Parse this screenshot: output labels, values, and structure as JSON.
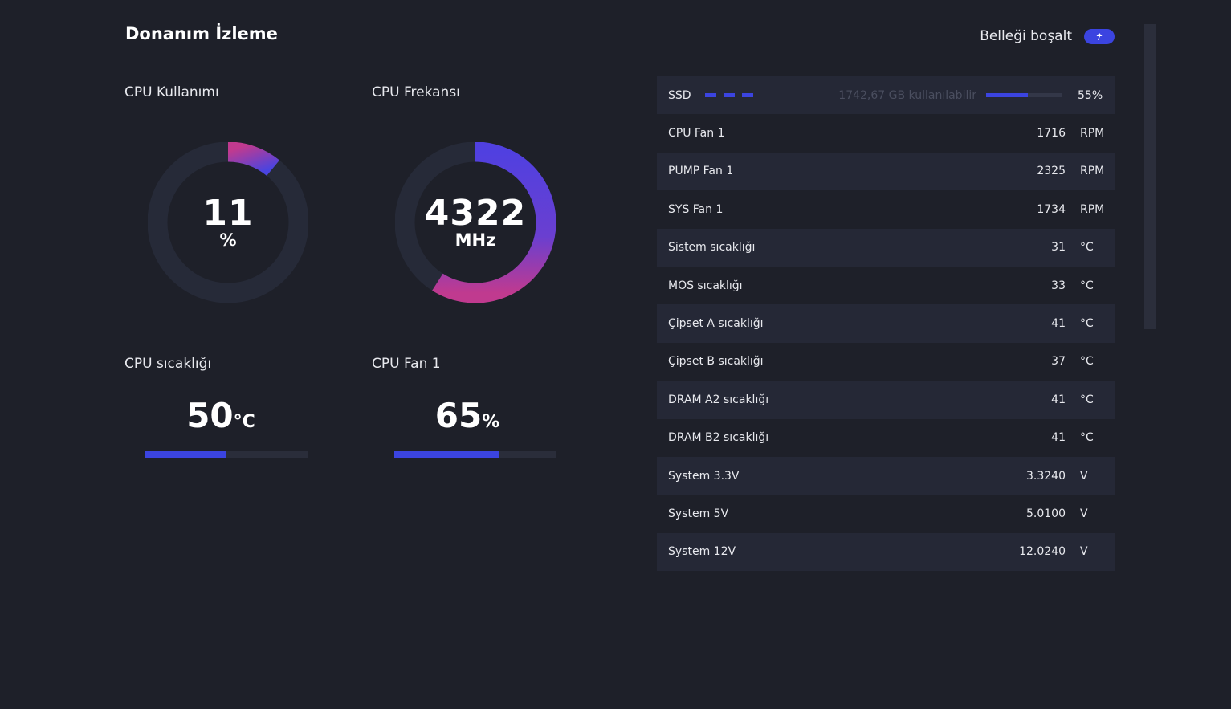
{
  "title": "Donanım İzleme",
  "free_memory": {
    "label": "Belleği boşalt",
    "icon": "up-arrow-icon"
  },
  "colors": {
    "accent": "#3b44e0",
    "gradient_start": "#c03a8f",
    "gradient_end": "#4a44e0",
    "background": "#1e2029",
    "track": "#262a38"
  },
  "cpu_usage": {
    "label": "CPU Kullanımı",
    "value": "11",
    "unit": "%",
    "fraction": 0.11
  },
  "cpu_freq": {
    "label": "CPU Frekansı",
    "value": "4322",
    "unit": "MHz",
    "fraction": 0.59
  },
  "cpu_temp": {
    "label": "CPU sıcaklığı",
    "value": "50",
    "unit": "°C",
    "fraction": 0.5
  },
  "cpu_fan": {
    "label": "CPU Fan 1",
    "value": "65",
    "unit": "%",
    "fraction": 0.65
  },
  "ssd": {
    "name": "SSD",
    "available": "1742,67 GB kullanılabilir",
    "percent": "55%",
    "fraction": 0.55
  },
  "sensors": [
    {
      "name": "CPU Fan 1",
      "value": "1716",
      "unit": "RPM"
    },
    {
      "name": "PUMP Fan 1",
      "value": "2325",
      "unit": "RPM"
    },
    {
      "name": "SYS Fan 1",
      "value": "1734",
      "unit": "RPM"
    },
    {
      "name": "Sistem sıcaklığı",
      "value": "31",
      "unit": "°C"
    },
    {
      "name": "MOS sıcaklığı",
      "value": "33",
      "unit": "°C"
    },
    {
      "name": "Çipset A sıcaklığı",
      "value": "41",
      "unit": "°C"
    },
    {
      "name": "Çipset B sıcaklığı",
      "value": "37",
      "unit": "°C"
    },
    {
      "name": "DRAM A2 sıcaklığı",
      "value": "41",
      "unit": "°C"
    },
    {
      "name": "DRAM B2 sıcaklığı",
      "value": "41",
      "unit": "°C"
    },
    {
      "name": "System 3.3V",
      "value": "3.3240",
      "unit": "V"
    },
    {
      "name": "System 5V",
      "value": "5.0100",
      "unit": "V"
    },
    {
      "name": "System 12V",
      "value": "12.0240",
      "unit": "V"
    }
  ]
}
